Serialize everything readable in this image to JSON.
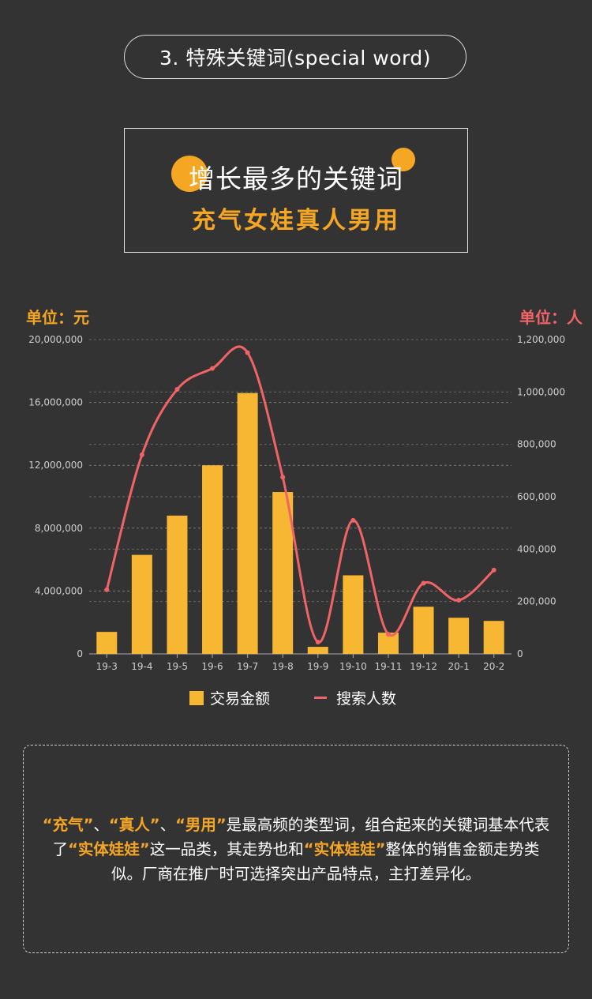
{
  "section_title": "3. 特殊关键词(special word)",
  "headline": {
    "line1": "增长最多的关键词",
    "line2": "充气女娃真人男用"
  },
  "units": {
    "left": "单位：元",
    "right": "单位：人"
  },
  "colors": {
    "bar": "#f7b733",
    "line": "#f06366",
    "accent": "#f5a623",
    "background": "#333333"
  },
  "chart_data": {
    "type": "bar+line",
    "categories": [
      "19-3",
      "19-4",
      "19-5",
      "19-6",
      "19-7",
      "19-8",
      "19-9",
      "19-10",
      "19-11",
      "19-12",
      "20-1",
      "20-2"
    ],
    "series": [
      {
        "name": "交易金额",
        "type": "bar",
        "axis": "left",
        "values": [
          1400000,
          6300000,
          8800000,
          12000000,
          16600000,
          10300000,
          450000,
          5000000,
          1350000,
          3000000,
          2300000,
          2100000
        ]
      },
      {
        "name": "搜索人数",
        "type": "line",
        "axis": "right",
        "values": [
          245000,
          760000,
          1010000,
          1090000,
          1150000,
          675000,
          45000,
          510000,
          75000,
          270000,
          205000,
          320000
        ]
      }
    ],
    "left_axis": {
      "min": 0,
      "max": 20000000,
      "ticks": [
        "0",
        "4,000,000",
        "8,000,000",
        "12,000,000",
        "16,000,000",
        "20,000,000"
      ]
    },
    "right_axis": {
      "min": 0,
      "max": 1200000,
      "ticks": [
        "0",
        "200,000",
        "400,000",
        "600,000",
        "800,000",
        "1,000,000",
        "1,200,000"
      ]
    },
    "grid": true,
    "legend_position": "bottom"
  },
  "note": {
    "h1": "“充气”",
    "t1": "、",
    "h2": "“真人”",
    "t2": "、",
    "h3": "“男用”",
    "t3": "是最高频的类型词，组合起来的关键词基本代表了",
    "h4": "“实体娃娃”",
    "t4": "这一品类，其走势也和",
    "h5": "“实体娃娃”",
    "t5": "整体的销售金额走势类似。厂商在推广时可选择突出产品特点，主打差异化。"
  }
}
